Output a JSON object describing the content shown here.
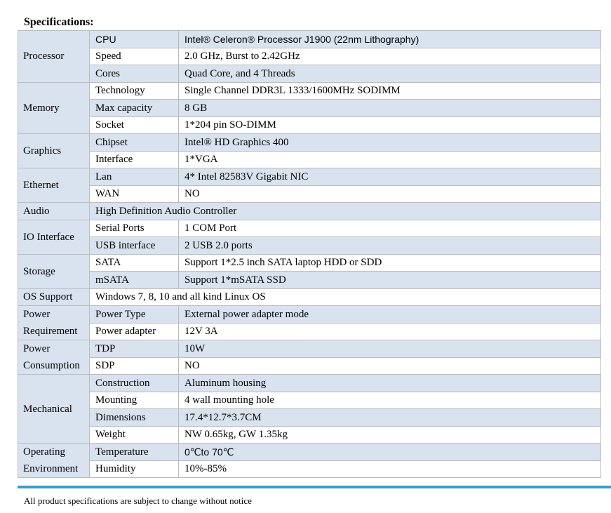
{
  "heading": "Specifications:",
  "table": {
    "processor": {
      "label": "Processor",
      "cpu": {
        "k": "CPU",
        "v": "Intel® Celeron® Processor J1900 (22nm Lithography)"
      },
      "speed": {
        "k": "Speed",
        "v": "2.0 GHz, Burst to 2.42GHz"
      },
      "cores": {
        "k": "Cores",
        "v": "Quad Core, and 4 Threads"
      }
    },
    "memory": {
      "label": "Memory",
      "technology": {
        "k": "Technology",
        "v": "Single Channel DDR3L 1333/1600MHz SODIMM"
      },
      "max_capacity": {
        "k": "Max capacity",
        "v": "8 GB"
      },
      "socket": {
        "k": "Socket",
        "v": "1*204 pin SO-DIMM"
      }
    },
    "graphics": {
      "label": "Graphics",
      "chipset": {
        "k": "Chipset",
        "v": "Intel® HD Graphics 400"
      },
      "interface": {
        "k": "Interface",
        "v": "1*VGA"
      }
    },
    "ethernet": {
      "label": "Ethernet",
      "lan": {
        "k": "Lan",
        "v": "4* Intel 82583V Gigabit NIC"
      },
      "wan": {
        "k": "WAN",
        "v": "NO"
      }
    },
    "audio": {
      "label": "Audio",
      "v": "High Definition Audio Controller"
    },
    "io": {
      "label": "IO Interface",
      "serial": {
        "k": "Serial Ports",
        "v": "1 COM Port"
      },
      "usb": {
        "k": "USB interface",
        "v": "2 USB 2.0 ports"
      }
    },
    "storage": {
      "label": "Storage",
      "sata": {
        "k": "SATA",
        "v": "Support 1*2.5 inch SATA laptop HDD or SDD"
      },
      "msata": {
        "k": "mSATA",
        "v": "Support 1*mSATA SSD"
      }
    },
    "os": {
      "label": "OS Support",
      "v": "Windows 7, 8, 10 and all kind Linux OS"
    },
    "power_req": {
      "label": "Power Requirement",
      "type": {
        "k": "Power Type",
        "v": "External power adapter mode"
      },
      "adapter": {
        "k": "Power adapter",
        "v": "12V 3A"
      }
    },
    "power_cons": {
      "label": "Power Consumption",
      "tdp": {
        "k": "TDP",
        "v": "10W"
      },
      "sdp": {
        "k": "SDP",
        "v": "NO"
      }
    },
    "mechanical": {
      "label": "Mechanical",
      "construction": {
        "k": "Construction",
        "v": "Aluminum housing"
      },
      "mounting": {
        "k": "Mounting",
        "v": "4 wall mounting hole"
      },
      "dimensions": {
        "k": "Dimensions",
        "v": "17.4*12.7*3.7CM"
      },
      "weight": {
        "k": "Weight",
        "v": "NW 0.65kg, GW 1.35kg"
      }
    },
    "environment": {
      "label": "Operating Environment",
      "temperature": {
        "k": "Temperature",
        "v": "0℃to 70℃"
      },
      "humidity": {
        "k": "Humidity",
        "v": "10%-85%"
      }
    }
  },
  "footer": "All product specifications are subject to change without notice",
  "colors": {
    "shade": "#d9e2ef",
    "rule": "#2f9ed8",
    "border": "#bcbcbc"
  }
}
